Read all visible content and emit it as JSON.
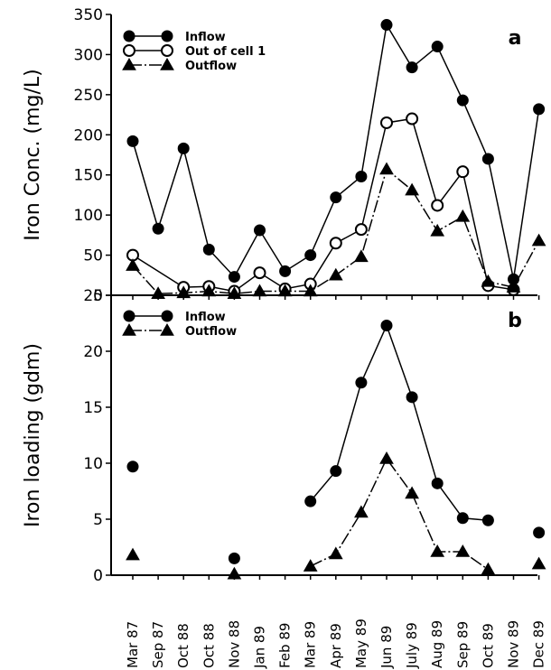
{
  "header_fragment": "",
  "chart_data": [
    {
      "panel": "a",
      "type": "line",
      "ylabel": "Iron Conc. (mg/L)",
      "ylim": [
        0,
        350
      ],
      "yticks": [
        0,
        50,
        100,
        150,
        200,
        250,
        300,
        350
      ],
      "legend_position": "top-left",
      "series": [
        {
          "name": "Inflow",
          "marker": "filled-circle",
          "dashed": false,
          "points": [
            [
              0,
              192
            ],
            [
              1,
              83
            ],
            [
              2,
              183
            ],
            [
              3,
              57
            ],
            [
              4,
              23
            ],
            [
              5,
              81
            ],
            [
              6,
              30
            ],
            [
              7,
              50
            ],
            [
              8,
              122
            ],
            [
              9,
              148
            ],
            [
              10,
              337
            ],
            [
              11,
              284
            ],
            [
              12,
              310
            ],
            [
              13,
              243
            ],
            [
              14,
              170
            ],
            [
              15,
              20
            ],
            [
              16,
              232
            ]
          ]
        },
        {
          "name": "Out of cell 1",
          "marker": "open-circle",
          "dashed": false,
          "points": [
            [
              0,
              50
            ],
            [
              2,
              10
            ],
            [
              3,
              11
            ],
            [
              4,
              5
            ],
            [
              5,
              28
            ],
            [
              6,
              8
            ],
            [
              7,
              14
            ],
            [
              8,
              65
            ],
            [
              9,
              82
            ],
            [
              10,
              215
            ],
            [
              11,
              220
            ],
            [
              12,
              112
            ],
            [
              13,
              154
            ],
            [
              14,
              12
            ],
            [
              15,
              7
            ]
          ]
        },
        {
          "name": "Outflow",
          "marker": "filled-triangle",
          "dashed": true,
          "points": [
            [
              0,
              37
            ],
            [
              1,
              2
            ],
            [
              2,
              3
            ],
            [
              3,
              5
            ],
            [
              4,
              2
            ],
            [
              5,
              5
            ],
            [
              6,
              5
            ],
            [
              7,
              5
            ],
            [
              8,
              25
            ],
            [
              9,
              48
            ],
            [
              10,
              157
            ],
            [
              11,
              131
            ],
            [
              12,
              80
            ],
            [
              13,
              98
            ],
            [
              14,
              17
            ],
            [
              15,
              10
            ],
            [
              16,
              68
            ]
          ]
        }
      ]
    },
    {
      "panel": "b",
      "type": "line",
      "ylabel": "Iron loading (gdm)",
      "ylim": [
        0,
        25
      ],
      "yticks": [
        0,
        5,
        10,
        15,
        20,
        25
      ],
      "legend_position": "top-left",
      "series": [
        {
          "name": "Inflow",
          "marker": "filled-circle",
          "dashed": false,
          "points": [
            [
              0,
              9.7
            ],
            [
              4,
              1.5
            ],
            [
              7,
              6.6
            ],
            [
              8,
              9.3
            ],
            [
              9,
              17.2
            ],
            [
              10,
              22.3
            ],
            [
              11,
              15.9
            ],
            [
              12,
              8.2
            ],
            [
              13,
              5.1
            ],
            [
              14,
              4.9
            ],
            [
              16,
              3.8
            ]
          ],
          "connect": [
            [
              7,
              8,
              9,
              10,
              11,
              12,
              13,
              14
            ]
          ]
        },
        {
          "name": "Outflow",
          "marker": "filled-triangle",
          "dashed": true,
          "points": [
            [
              0,
              1.8
            ],
            [
              4,
              0.1
            ],
            [
              7,
              0.8
            ],
            [
              8,
              1.9
            ],
            [
              9,
              5.6
            ],
            [
              10,
              10.4
            ],
            [
              11,
              7.3
            ],
            [
              12,
              2.1
            ],
            [
              13,
              2.1
            ],
            [
              14,
              0.5
            ],
            [
              16,
              1.0
            ]
          ],
          "connect": [
            [
              7,
              8,
              9,
              10,
              11,
              12,
              13,
              14
            ]
          ]
        }
      ]
    }
  ],
  "x_categories": [
    "Mar 87",
    "Sep 87",
    "Oct 88",
    "Oct 88",
    "Nov 88",
    "Jan 89",
    "Feb 89",
    "Mar 89",
    "Apr 89",
    "May 89",
    "Jun 89",
    "July 89",
    "Aug 89",
    "Sep 89",
    "Oct 89",
    "Nov 89",
    "Dec 89"
  ]
}
